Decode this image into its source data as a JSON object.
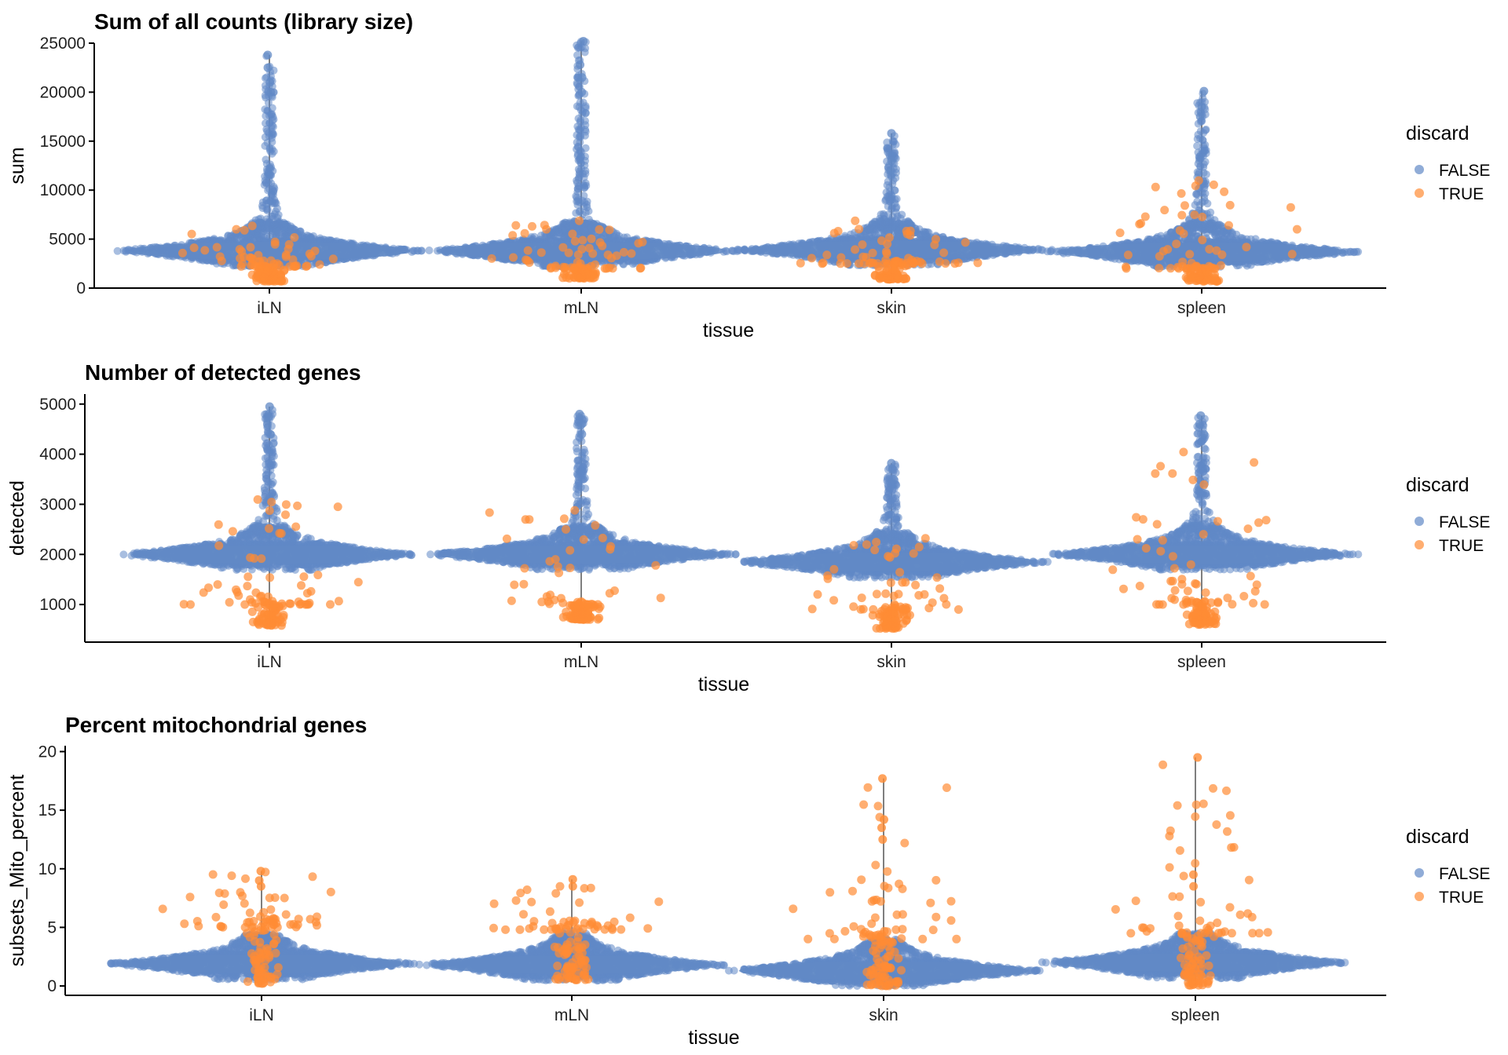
{
  "colors": {
    "false": "#6189C6",
    "true": "#FF8C35",
    "whisker": "#7f7f7f",
    "axis": "#000000"
  },
  "legend": {
    "title": "discard",
    "labels": [
      "FALSE",
      "TRUE"
    ]
  },
  "chart_data": [
    {
      "type": "violin-beeswarm",
      "title": "Sum of all counts (library size)",
      "xlabel": "tissue",
      "ylabel": "sum",
      "categories": [
        "iLN",
        "mLN",
        "skin",
        "spleen"
      ],
      "yticks": [
        0,
        5000,
        10000,
        15000,
        20000,
        25000
      ],
      "ylim": [
        0,
        25000
      ],
      "grid": false,
      "legend_position": "right",
      "series": [
        {
          "name": "FALSE",
          "min": [
            700,
            1000,
            800,
            700
          ],
          "median": [
            3800,
            3800,
            3900,
            3700
          ],
          "max": [
            23800,
            25200,
            15800,
            20100
          ],
          "outliers": [
            [
              20000,
              21000,
              22500,
              23800
            ],
            [
              20000,
              21500,
              22800,
              25200
            ],
            [
              12000,
              13000,
              15800
            ],
            [
              17500,
              18500,
              20100
            ]
          ]
        },
        {
          "name": "TRUE",
          "min": [
            700,
            1000,
            900,
            700
          ],
          "median": [
            2200,
            2000,
            2500,
            2000
          ],
          "max": [
            6500,
            7000,
            7000,
            11000
          ]
        }
      ]
    },
    {
      "type": "violin-beeswarm",
      "title": "Number of detected genes",
      "xlabel": "tissue",
      "ylabel": "detected",
      "categories": [
        "iLN",
        "mLN",
        "skin",
        "spleen"
      ],
      "yticks": [
        1000,
        2000,
        3000,
        4000,
        5000
      ],
      "ylim": [
        250,
        5200
      ],
      "grid": false,
      "legend_position": "right",
      "series": [
        {
          "name": "FALSE",
          "min": [
            550,
            700,
            500,
            600
          ],
          "median": [
            2000,
            2000,
            1850,
            2000
          ],
          "max": [
            4950,
            4800,
            3820,
            4770
          ],
          "outliers": [
            [
              4400,
              4600,
              4750,
              4950
            ],
            [
              4400,
              4600,
              4800
            ],
            [
              3500,
              3700,
              3820
            ],
            [
              4400,
              4600,
              4770
            ]
          ]
        },
        {
          "name": "TRUE",
          "min": [
            580,
            700,
            520,
            600
          ],
          "median": [
            1000,
            1000,
            900,
            1000
          ],
          "max": [
            3500,
            3000,
            2600,
            4200
          ]
        }
      ]
    },
    {
      "type": "violin-beeswarm",
      "title": "Percent mitochondrial genes",
      "xlabel": "tissue",
      "ylabel": "subsets_Mito_percent",
      "categories": [
        "iLN",
        "mLN",
        "skin",
        "spleen"
      ],
      "yticks": [
        0,
        5,
        10,
        15,
        20
      ],
      "ylim": [
        -0.8,
        20.5
      ],
      "grid": false,
      "legend_position": "right",
      "series": [
        {
          "name": "FALSE",
          "min": [
            0.2,
            0.3,
            0.0,
            0.2
          ],
          "median": [
            1.9,
            1.8,
            1.3,
            2.0
          ],
          "max": [
            4.5,
            4.7,
            4.0,
            4.5
          ]
        },
        {
          "name": "TRUE",
          "min": [
            0.2,
            0.5,
            0.0,
            0.0
          ],
          "median": [
            5.0,
            4.8,
            4.0,
            4.5
          ],
          "max": [
            9.8,
            9.1,
            17.7,
            19.5
          ],
          "outliers": [
            [
              8.5,
              9.0,
              9.8
            ],
            [
              8.5,
              9.1
            ],
            [
              12.5,
              13.5,
              14.2,
              17.7
            ],
            [
              8.5,
              9.5,
              19.5
            ]
          ]
        }
      ]
    }
  ]
}
